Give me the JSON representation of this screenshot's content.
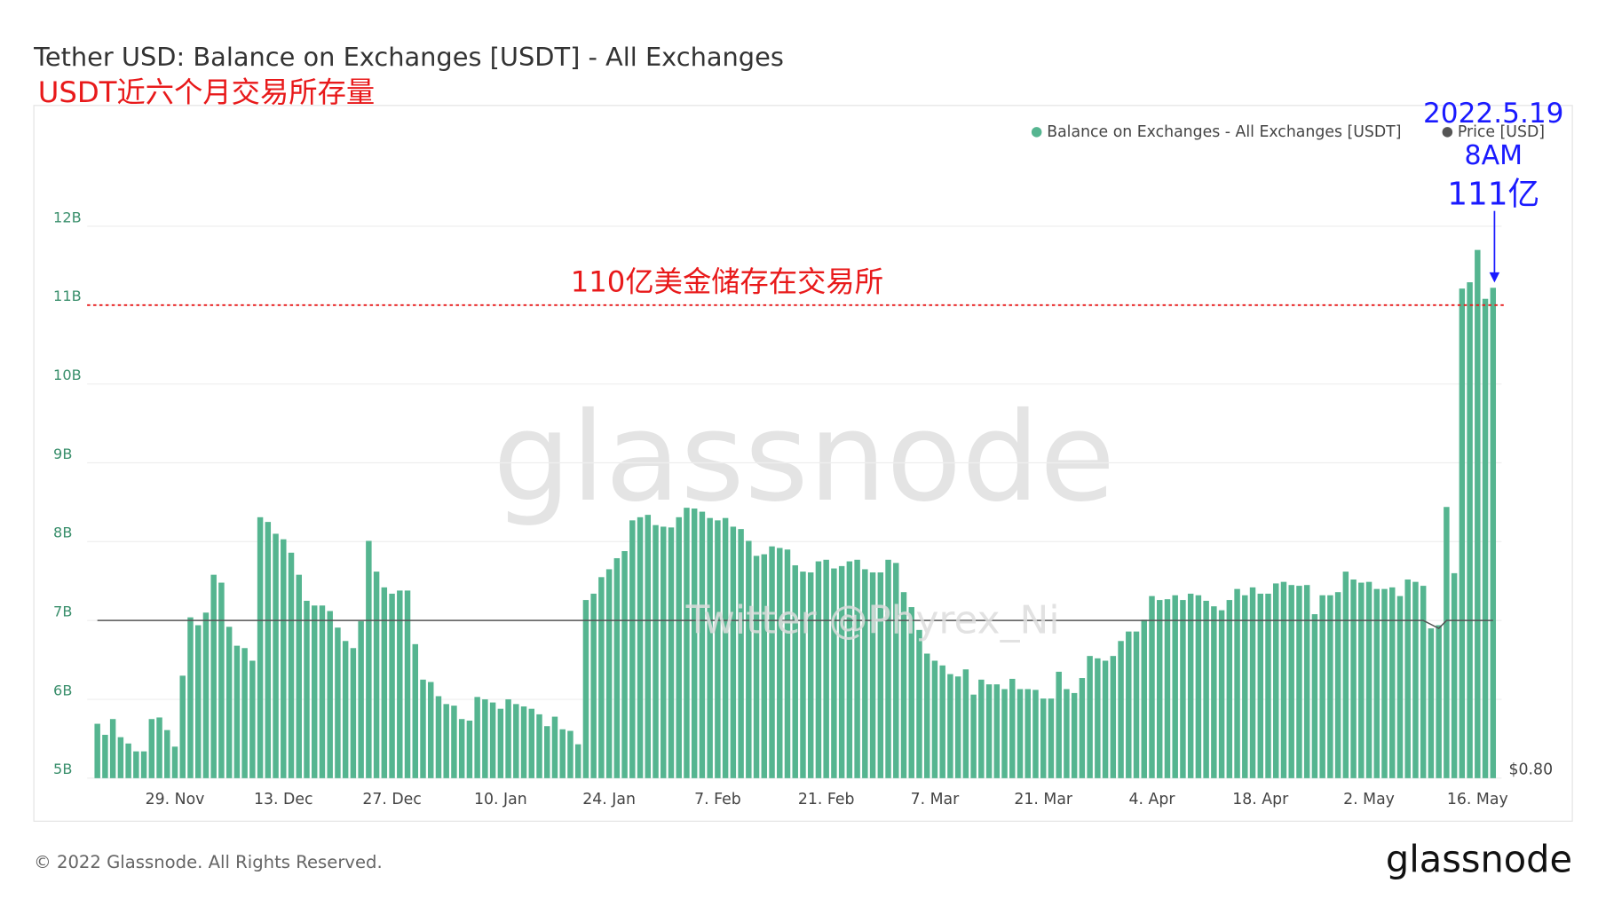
{
  "chart_data": {
    "type": "bar",
    "title": "Tether USD: Balance on Exchanges [USDT] - All Exchanges",
    "subtitle": "USDT近六个月交易所存量",
    "categories": [
      null,
      null,
      null,
      null,
      null,
      null,
      null,
      null,
      null,
      null,
      "29. Nov",
      null,
      null,
      null,
      null,
      null,
      null,
      null,
      null,
      null,
      null,
      null,
      null,
      null,
      "13. Dec",
      null,
      null,
      null,
      null,
      null,
      null,
      null,
      null,
      null,
      null,
      null,
      null,
      null,
      "27. Dec",
      null,
      null,
      null,
      null,
      null,
      null,
      null,
      null,
      null,
      null,
      null,
      null,
      null,
      "10. Jan",
      null,
      null,
      null,
      null,
      null,
      null,
      null,
      null,
      null,
      null,
      null,
      null,
      null,
      "24. Jan",
      null,
      null,
      null,
      null,
      null,
      null,
      null,
      null,
      null,
      null,
      null,
      null,
      null,
      "7. Feb",
      null,
      null,
      null,
      null,
      null,
      null,
      null,
      null,
      null,
      null,
      null,
      null,
      null,
      "21. Feb",
      null,
      null,
      null,
      null,
      null,
      null,
      null,
      null,
      null,
      null,
      null,
      null,
      null,
      "7. Mar",
      null,
      null,
      null,
      null,
      null,
      null,
      null,
      null,
      null,
      null,
      null,
      null,
      null,
      "21. Mar",
      null,
      null,
      null,
      null,
      null,
      null,
      null,
      null,
      null,
      null,
      null,
      null,
      null,
      "4. Apr",
      null,
      null,
      null,
      null,
      null,
      null,
      null,
      null,
      null,
      null,
      null,
      null,
      null,
      "18. Apr",
      null,
      null,
      null,
      null,
      null,
      null,
      null,
      null,
      null,
      null,
      null,
      null,
      null,
      "2. May",
      null,
      null,
      null,
      null,
      null,
      null,
      null,
      null,
      null,
      null,
      null,
      null,
      null,
      "16. May",
      null,
      null
    ],
    "series": [
      {
        "name": "Balance on Exchanges - All Exchanges [USDT]",
        "type": "bar",
        "color": "#55b590",
        "values": [
          5.69,
          5.55,
          5.75,
          5.52,
          5.44,
          5.34,
          5.34,
          5.75,
          5.77,
          5.61,
          5.4,
          6.3,
          7.04,
          6.94,
          7.1,
          7.58,
          7.48,
          6.92,
          6.68,
          6.65,
          6.49,
          8.31,
          8.25,
          8.1,
          8.03,
          7.86,
          7.58,
          7.25,
          7.19,
          7.19,
          7.12,
          6.91,
          6.74,
          6.65,
          6.99,
          8.01,
          7.62,
          7.42,
          7.34,
          7.38,
          7.38,
          6.7,
          6.25,
          6.22,
          6.04,
          5.94,
          5.92,
          5.75,
          5.73,
          6.03,
          6.0,
          5.96,
          5.88,
          6.0,
          5.94,
          5.91,
          5.88,
          5.81,
          5.66,
          5.78,
          5.62,
          5.6,
          5.43,
          7.26,
          7.34,
          7.55,
          7.65,
          7.79,
          7.88,
          8.27,
          8.31,
          8.34,
          8.21,
          8.19,
          8.18,
          8.31,
          8.43,
          8.42,
          8.38,
          8.3,
          8.27,
          8.3,
          8.19,
          8.16,
          8.01,
          7.82,
          7.84,
          7.94,
          7.92,
          7.9,
          7.7,
          7.62,
          7.61,
          7.75,
          7.77,
          7.66,
          7.69,
          7.75,
          7.77,
          7.65,
          7.61,
          7.61,
          7.77,
          7.73,
          7.36,
          7.17,
          6.88,
          6.58,
          6.49,
          6.43,
          6.32,
          6.29,
          6.38,
          6.06,
          6.25,
          6.19,
          6.19,
          6.13,
          6.26,
          6.13,
          6.13,
          6.12,
          6.01,
          6.01,
          6.35,
          6.13,
          6.08,
          6.27,
          6.55,
          6.52,
          6.49,
          6.55,
          6.74,
          6.86,
          6.86,
          7.01,
          7.31,
          7.26,
          7.27,
          7.32,
          7.26,
          7.34,
          7.32,
          7.25,
          7.18,
          7.13,
          7.26,
          7.4,
          7.32,
          7.42,
          7.34,
          7.34,
          7.47,
          7.49,
          7.45,
          7.44,
          7.45,
          7.08,
          7.32,
          7.32,
          7.36,
          7.62,
          7.52,
          7.48,
          7.49,
          7.4,
          7.4,
          7.42,
          7.31,
          7.52,
          7.49,
          7.44,
          6.9,
          6.94,
          8.44,
          7.6,
          11.21,
          11.29,
          11.7,
          11.08,
          11.22
        ]
      },
      {
        "name": "Price [USD]",
        "type": "line",
        "axis": "y2",
        "color": "#555555",
        "values": [
          1,
          1,
          1,
          1,
          1,
          1,
          1,
          1,
          1,
          1,
          1,
          1,
          1,
          1,
          1,
          1,
          1,
          1,
          1,
          1,
          1,
          1,
          1,
          1,
          1,
          1,
          1,
          1,
          1,
          1,
          1,
          1,
          1,
          1,
          1,
          1,
          1,
          1,
          1,
          1,
          1,
          1,
          1,
          1,
          1,
          1,
          1,
          1,
          1,
          1,
          1,
          1,
          1,
          1,
          1,
          1,
          1,
          1,
          1,
          1,
          1,
          1,
          1,
          1,
          1,
          1,
          1,
          1,
          1,
          1,
          1,
          1,
          1,
          1,
          1,
          1,
          1,
          1,
          1,
          1,
          1,
          1,
          1,
          1,
          1,
          1,
          1,
          1,
          1,
          1,
          1,
          1,
          1,
          1,
          1,
          1,
          1,
          1,
          1,
          1,
          1,
          1,
          1,
          1,
          1,
          1,
          1,
          1,
          1,
          1,
          1,
          1,
          1,
          1,
          1,
          1,
          1,
          1,
          1,
          1,
          1,
          1,
          1,
          1,
          1,
          1,
          1,
          1,
          1,
          1,
          1,
          1,
          1,
          1,
          1,
          1,
          1,
          1,
          1,
          1,
          1,
          1,
          1,
          1,
          1,
          1,
          1,
          1,
          1,
          1,
          1,
          1,
          1,
          1,
          1,
          1,
          1,
          1,
          1,
          1,
          1,
          1,
          1,
          1,
          1,
          1,
          1,
          1,
          1,
          1,
          1,
          1,
          0.995,
          0.99,
          1,
          1,
          1,
          1,
          1,
          1,
          1
        ]
      }
    ],
    "ylim": [
      5,
      13
    ],
    "yticks": [
      {
        "value": 5,
        "label": "5B"
      },
      {
        "value": 6,
        "label": "6B"
      },
      {
        "value": 7,
        "label": "7B"
      },
      {
        "value": 8,
        "label": "8B"
      },
      {
        "value": 9,
        "label": "9B"
      },
      {
        "value": 10,
        "label": "10B"
      },
      {
        "value": 11,
        "label": "11B"
      },
      {
        "value": 12,
        "label": "12B"
      }
    ],
    "y2lim": [
      0.8,
      1.6
    ],
    "y2ticks": [
      {
        "value": 0.8,
        "label": "$0.80"
      }
    ],
    "grid": true,
    "legend_position": "top-right",
    "reference_line": {
      "value": 11,
      "label": "110亿美金储存在交易所",
      "color": "#e8191a"
    },
    "annotations": [
      {
        "text": "2022.5.19",
        "color": "#1a1aff"
      },
      {
        "text": "8AM",
        "color": "#1a1aff"
      },
      {
        "text": "111亿",
        "color": "#1a1aff"
      }
    ],
    "watermark": "glassnode",
    "credit": "Twitter @Phyrex_Ni",
    "footer": "© 2022 Glassnode. All Rights Reserved.",
    "logo": "glassnode"
  }
}
